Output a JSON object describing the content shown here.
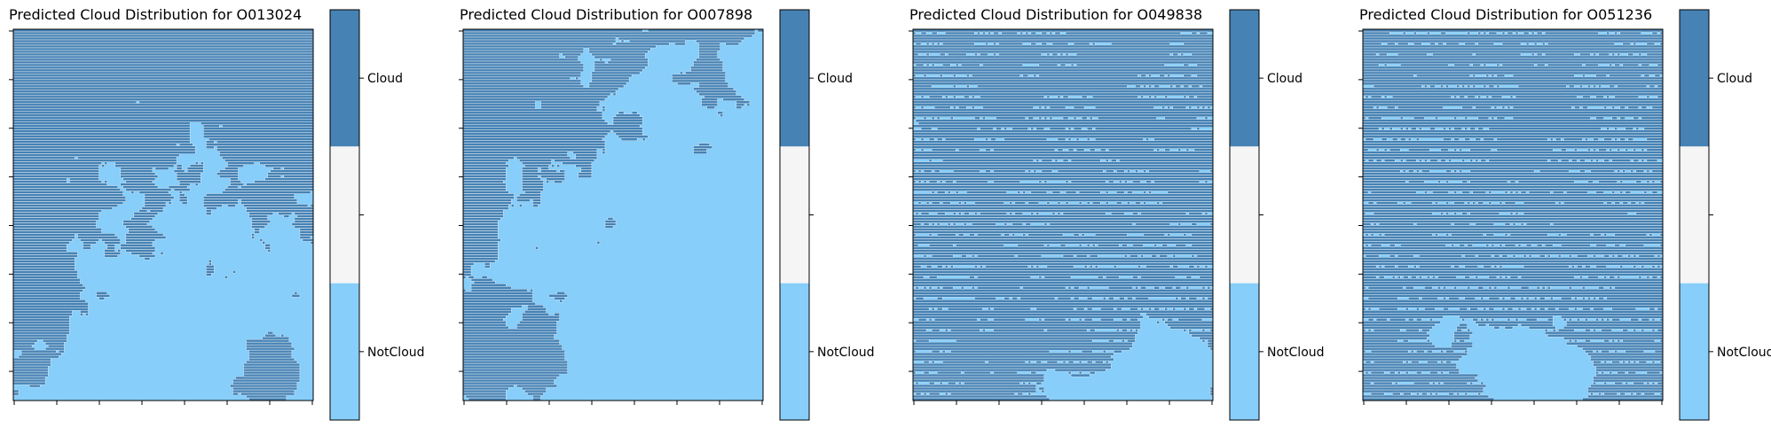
{
  "colors": {
    "cloud": "#4682b4",
    "not_cloud": "#87cefa",
    "middle": "#f5f5f5",
    "edge": "#ffffff"
  },
  "chart_data": [
    {
      "type": "heatmap",
      "title": "Predicted Cloud Distribution for O013024",
      "classes": [
        "NotCloud",
        "Cloud"
      ],
      "colorbar": {
        "ticks": [
          "Cloud",
          "NotCloud"
        ]
      },
      "xticklabels": [],
      "yticklabels": [],
      "description_of_pattern": "mostly NotCloud; Cloud concentrated at top, left edge and bottom-right corner",
      "cloud_fraction_estimate": 0.35
    },
    {
      "type": "heatmap",
      "title": "Predicted Cloud Distribution for O007898",
      "classes": [
        "NotCloud",
        "Cloud"
      ],
      "colorbar": {
        "ticks": [
          "Cloud",
          "NotCloud"
        ]
      },
      "xticklabels": [],
      "yticklabels": [],
      "description_of_pattern": "Cloud in upper-left and lower-left; NotCloud over right and center",
      "cloud_fraction_estimate": 0.4
    },
    {
      "type": "heatmap",
      "title": "Predicted Cloud Distribution for O049838",
      "classes": [
        "NotCloud",
        "Cloud"
      ],
      "colorbar": {
        "ticks": [
          "Cloud",
          "NotCloud"
        ]
      },
      "xticklabels": [],
      "yticklabels": [],
      "description_of_pattern": "mostly Cloud with striped texture; NotCloud at bottom-right",
      "cloud_fraction_estimate": 0.7
    },
    {
      "type": "heatmap",
      "title": "Predicted Cloud Distribution for O051236",
      "classes": [
        "NotCloud",
        "Cloud"
      ],
      "colorbar": {
        "ticks": [
          "Cloud",
          "NotCloud"
        ]
      },
      "xticklabels": [],
      "yticklabels": [],
      "description_of_pattern": "mostly Cloud with striped texture; NotCloud region at bottom center",
      "cloud_fraction_estimate": 0.65
    }
  ]
}
